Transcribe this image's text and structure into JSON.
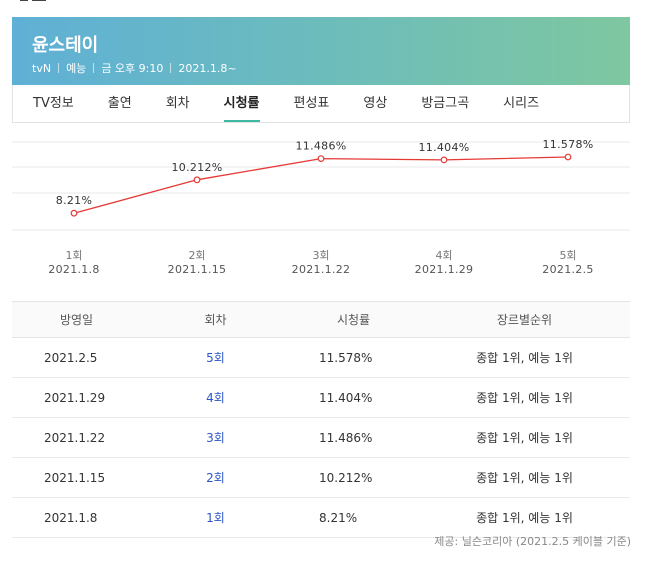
{
  "header": {
    "title": "윤스테이",
    "channel": "tvN",
    "genre": "예능",
    "airtime": "금 오후 9:10",
    "start_date": "2021.1.8~"
  },
  "tabs": [
    {
      "label": "TV정보",
      "active": false
    },
    {
      "label": "출연",
      "active": false
    },
    {
      "label": "회차",
      "active": false
    },
    {
      "label": "시청률",
      "active": true
    },
    {
      "label": "편성표",
      "active": false
    },
    {
      "label": "영상",
      "active": false
    },
    {
      "label": "방금그곡",
      "active": false
    },
    {
      "label": "시리즈",
      "active": false
    }
  ],
  "chart_data": {
    "type": "line",
    "title": "",
    "x": [
      "1회",
      "2회",
      "3회",
      "4회",
      "5회"
    ],
    "dates": [
      "2021.1.8",
      "2021.1.15",
      "2021.1.22",
      "2021.1.29",
      "2021.2.5"
    ],
    "values": [
      8.21,
      10.212,
      11.486,
      11.404,
      11.578
    ],
    "labels": [
      "8.21%",
      "10.212%",
      "11.486%",
      "11.404%",
      "11.578%"
    ],
    "ylim": [
      7.2,
      12.6
    ],
    "grid": true,
    "line_color": "#e53935"
  },
  "table": {
    "headers": [
      "방영일",
      "회차",
      "시청률",
      "장르별순위"
    ],
    "rows": [
      {
        "date": "2021.2.5",
        "episode": "5회",
        "rating": "11.578%",
        "rank": "종합 1위, 예능 1위"
      },
      {
        "date": "2021.1.29",
        "episode": "4회",
        "rating": "11.404%",
        "rank": "종합 1위, 예능 1위"
      },
      {
        "date": "2021.1.22",
        "episode": "3회",
        "rating": "11.486%",
        "rank": "종합 1위, 예능 1위"
      },
      {
        "date": "2021.1.15",
        "episode": "2회",
        "rating": "10.212%",
        "rank": "종합 1위, 예능 1위"
      },
      {
        "date": "2021.1.8",
        "episode": "1회",
        "rating": "8.21%",
        "rank": "종합 1위, 예능 1위"
      }
    ]
  },
  "source": "제공: 닐슨코리아 (2021.2.5 케이블 기준)"
}
